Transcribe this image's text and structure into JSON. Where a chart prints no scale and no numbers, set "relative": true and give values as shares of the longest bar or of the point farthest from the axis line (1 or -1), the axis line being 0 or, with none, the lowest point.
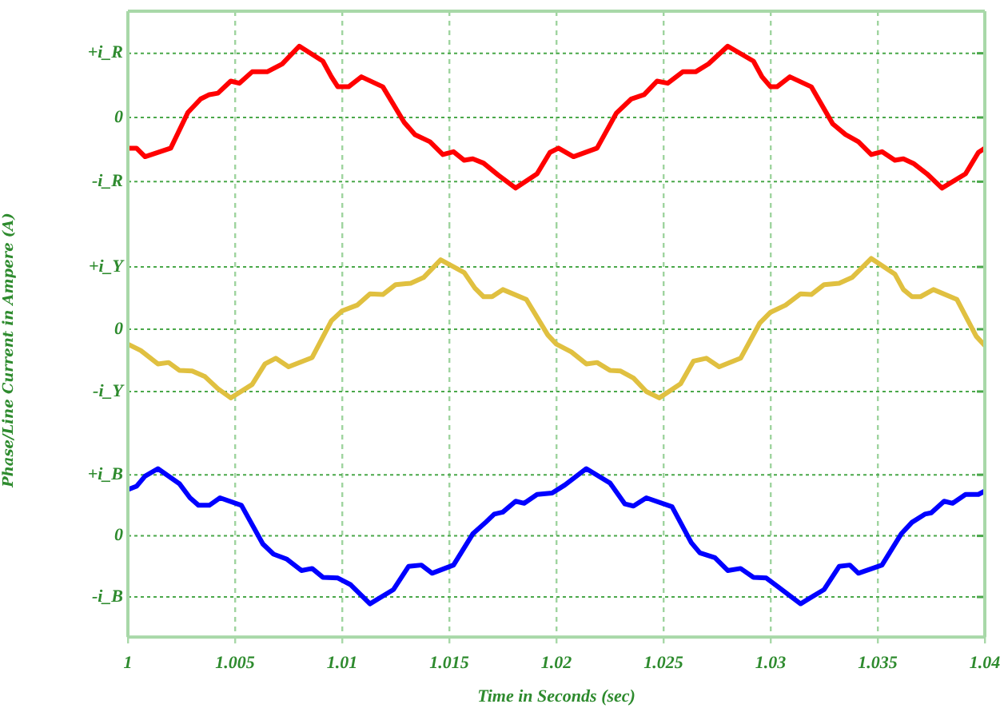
{
  "chart_data": [
    {
      "type": "line",
      "relative": true,
      "xlim": [
        1,
        1.04
      ],
      "xticks": [
        1,
        1.005,
        1.01,
        1.015,
        1.02,
        1.025,
        1.03,
        1.035,
        1.04
      ],
      "grid": true,
      "tick_labels": false,
      "ref_lines": [
        {
          "axis": "y",
          "value": 0.9,
          "label": "+i_R"
        },
        {
          "axis": "y",
          "value": 0,
          "label": "0"
        },
        {
          "axis": "y",
          "value": -0.9,
          "label": "-i_R"
        }
      ],
      "series": [
        {
          "color": "#ff0000",
          "x": [
            1.0,
            1.0004,
            1.0008,
            1.002,
            1.0028,
            1.0034,
            1.0038,
            1.0042,
            1.0048,
            1.0052,
            1.0058,
            1.0065,
            1.0072,
            1.008,
            1.0091,
            1.0095,
            1.0098,
            1.0103,
            1.0109,
            1.0119,
            1.0129,
            1.0134,
            1.0141,
            1.0147,
            1.0152,
            1.0157,
            1.0161,
            1.0166,
            1.0173,
            1.0181,
            1.0191,
            1.0197,
            1.0201,
            1.0208,
            1.0219,
            1.0228,
            1.0235,
            1.0241,
            1.0247,
            1.0252,
            1.0259,
            1.0265,
            1.0271,
            1.028,
            1.0292,
            1.0296,
            1.03,
            1.0303,
            1.0309,
            1.0319,
            1.0329,
            1.0335,
            1.0341,
            1.0347,
            1.0352,
            1.0358,
            1.0362,
            1.0367,
            1.0373,
            1.038,
            1.0391,
            1.0397,
            1.04
          ],
          "values": [
            -0.43,
            -0.43,
            -0.55,
            -0.43,
            0.07,
            0.26,
            0.32,
            0.34,
            0.51,
            0.48,
            0.64,
            0.64,
            0.75,
            1,
            0.79,
            0.57,
            0.43,
            0.43,
            0.57,
            0.43,
            -0.07,
            -0.24,
            -0.34,
            -0.52,
            -0.48,
            -0.6,
            -0.58,
            -0.64,
            -0.81,
            -0.99,
            -0.79,
            -0.49,
            -0.43,
            -0.55,
            -0.43,
            0.06,
            0.26,
            0.32,
            0.51,
            0.48,
            0.64,
            0.64,
            0.75,
            1,
            0.79,
            0.57,
            0.43,
            0.43,
            0.57,
            0.43,
            -0.09,
            -0.24,
            -0.34,
            -0.52,
            -0.48,
            -0.6,
            -0.58,
            -0.65,
            -0.79,
            -0.99,
            -0.79,
            -0.49,
            -0.43
          ]
        }
      ]
    },
    {
      "type": "line",
      "relative": true,
      "xlim": [
        1,
        1.04
      ],
      "xticks": [
        1,
        1.005,
        1.01,
        1.015,
        1.02,
        1.025,
        1.03,
        1.035,
        1.04
      ],
      "grid": true,
      "tick_labels": false,
      "ylabel": "Phase/Line Current in Ampere (A)",
      "ref_lines": [
        {
          "axis": "y",
          "value": 0.88,
          "label": "+i_Y"
        },
        {
          "axis": "y",
          "value": 0,
          "label": "0"
        },
        {
          "axis": "y",
          "value": -0.88,
          "label": "-i_Y"
        }
      ],
      "series": [
        {
          "color": "#e0c040",
          "x": [
            1.0,
            1.0006,
            1.0014,
            1.0019,
            1.0024,
            1.003,
            1.0036,
            1.0042,
            1.0048,
            1.0058,
            1.0064,
            1.0069,
            1.0075,
            1.0086,
            1.0095,
            1.01,
            1.0107,
            1.0113,
            1.0119,
            1.0125,
            1.0132,
            1.0138,
            1.0146,
            1.0157,
            1.0162,
            1.0166,
            1.017,
            1.0175,
            1.0186,
            1.0196,
            1.02,
            1.0207,
            1.0214,
            1.0219,
            1.0225,
            1.023,
            1.0236,
            1.0242,
            1.0248,
            1.0258,
            1.0264,
            1.027,
            1.0276,
            1.0286,
            1.0295,
            1.03,
            1.0307,
            1.0314,
            1.0319,
            1.0325,
            1.0332,
            1.0338,
            1.0347,
            1.0358,
            1.0362,
            1.0366,
            1.037,
            1.0376,
            1.0387,
            1.0396,
            1.04
          ],
          "values": [
            -0.21,
            -0.3,
            -0.49,
            -0.47,
            -0.58,
            -0.59,
            -0.67,
            -0.84,
            -0.97,
            -0.78,
            -0.49,
            -0.41,
            -0.53,
            -0.4,
            0.12,
            0.26,
            0.34,
            0.5,
            0.49,
            0.63,
            0.65,
            0.73,
            0.98,
            0.8,
            0.58,
            0.46,
            0.46,
            0.56,
            0.42,
            -0.08,
            -0.21,
            -0.32,
            -0.49,
            -0.47,
            -0.58,
            -0.59,
            -0.69,
            -0.88,
            -0.97,
            -0.77,
            -0.45,
            -0.41,
            -0.53,
            -0.41,
            0.09,
            0.24,
            0.34,
            0.5,
            0.49,
            0.63,
            0.65,
            0.73,
            1,
            0.78,
            0.56,
            0.46,
            0.46,
            0.56,
            0.42,
            -0.1,
            -0.23
          ]
        }
      ]
    },
    {
      "type": "line",
      "relative": true,
      "xlim": [
        1,
        1.04
      ],
      "xticks": [
        1,
        1.005,
        1.01,
        1.015,
        1.02,
        1.025,
        1.03,
        1.035,
        1.04
      ],
      "grid": true,
      "tick_labels": "x",
      "xlabel": "Time in Seconds (sec)",
      "ref_lines": [
        {
          "axis": "y",
          "value": 0.9,
          "label": "+i_B"
        },
        {
          "axis": "y",
          "value": 0,
          "label": "0"
        },
        {
          "axis": "y",
          "value": -0.9,
          "label": "-i_B"
        }
      ],
      "series": [
        {
          "color": "#0000ff",
          "x": [
            1.0,
            1.0004,
            1.0008,
            1.0014,
            1.0024,
            1.0029,
            1.0033,
            1.0038,
            1.0043,
            1.0053,
            1.0063,
            1.0068,
            1.0074,
            1.0081,
            1.0086,
            1.0091,
            1.0098,
            1.0104,
            1.0113,
            1.0124,
            1.0131,
            1.0137,
            1.0142,
            1.0152,
            1.0161,
            1.0167,
            1.0171,
            1.0175,
            1.0181,
            1.0185,
            1.0191,
            1.0198,
            1.0204,
            1.0214,
            1.0225,
            1.0232,
            1.0236,
            1.0242,
            1.0254,
            1.0263,
            1.0267,
            1.0274,
            1.028,
            1.0286,
            1.0292,
            1.0298,
            1.0303,
            1.0314,
            1.0325,
            1.0332,
            1.0337,
            1.0341,
            1.0352,
            1.0361,
            1.0366,
            1.0372,
            1.0375,
            1.0381,
            1.0385,
            1.0391,
            1.0397,
            1.04
          ],
          "values": [
            0.68,
            0.73,
            0.88,
            0.99,
            0.77,
            0.56,
            0.45,
            0.45,
            0.56,
            0.45,
            -0.12,
            -0.27,
            -0.34,
            -0.51,
            -0.48,
            -0.61,
            -0.62,
            -0.72,
            -1,
            -0.79,
            -0.45,
            -0.43,
            -0.55,
            -0.43,
            0.03,
            0.2,
            0.32,
            0.35,
            0.51,
            0.48,
            0.61,
            0.63,
            0.75,
            0.99,
            0.78,
            0.47,
            0.44,
            0.56,
            0.43,
            -0.1,
            -0.25,
            -0.32,
            -0.51,
            -0.48,
            -0.61,
            -0.62,
            -0.74,
            -1,
            -0.79,
            -0.45,
            -0.43,
            -0.55,
            -0.43,
            0.03,
            0.2,
            0.32,
            0.34,
            0.51,
            0.48,
            0.61,
            0.61,
            0.66
          ]
        }
      ]
    }
  ]
}
